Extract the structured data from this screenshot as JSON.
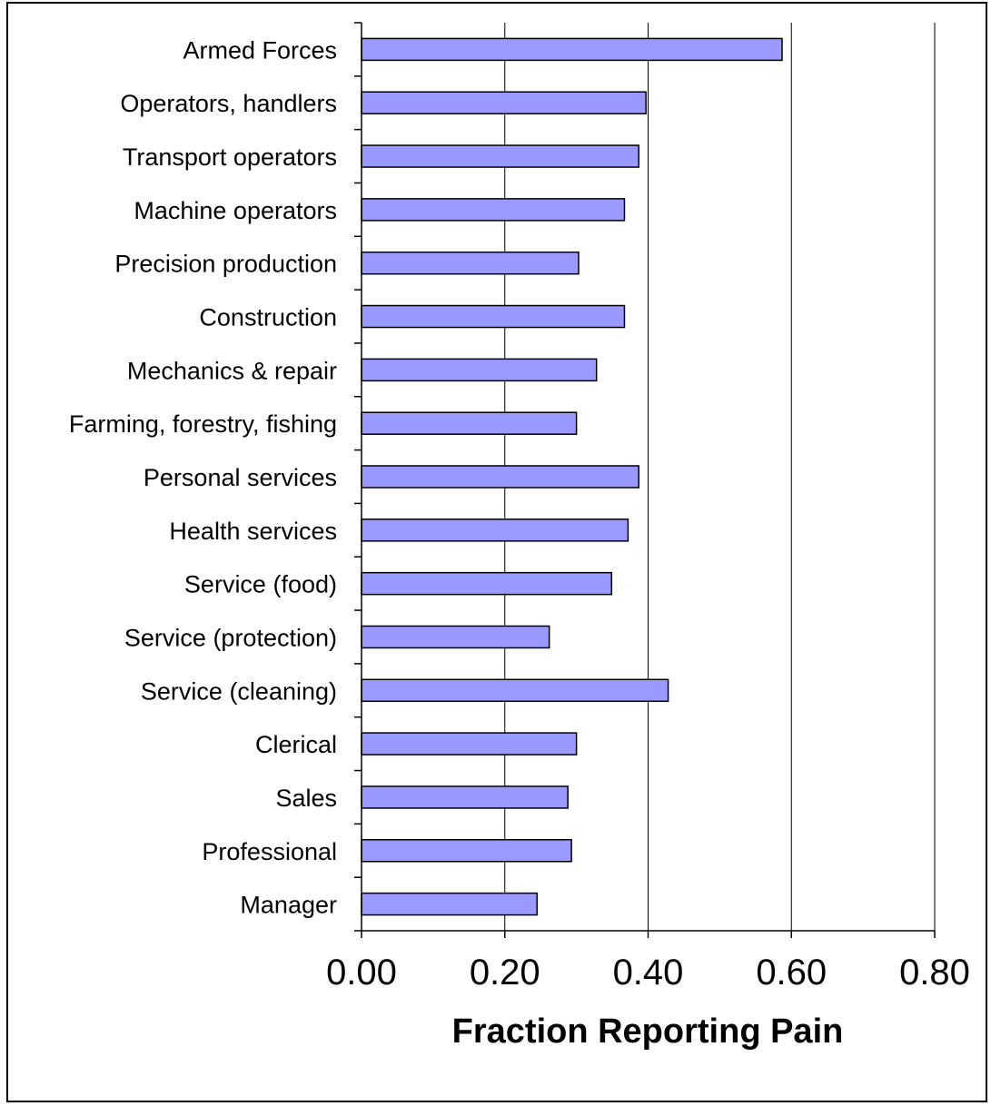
{
  "chart_data": {
    "type": "bar",
    "orientation": "horizontal",
    "categories": [
      "Armed Forces",
      "Operators, handlers",
      "Transport operators",
      "Machine operators",
      "Precision production",
      "Construction",
      "Mechanics & repair",
      "Farming, forestry, fishing",
      "Personal services",
      "Health services",
      "Service (food)",
      "Service (protection)",
      "Service (cleaning)",
      "Clerical",
      "Sales",
      "Professional",
      "Manager"
    ],
    "values": [
      0.587,
      0.397,
      0.387,
      0.367,
      0.303,
      0.367,
      0.328,
      0.3,
      0.387,
      0.372,
      0.349,
      0.262,
      0.428,
      0.3,
      0.288,
      0.293,
      0.245
    ],
    "xlim": [
      0,
      0.8
    ],
    "xticks": [
      0,
      0.2,
      0.4,
      0.6,
      0.8
    ],
    "xtick_labels": [
      "0.00",
      "0.20",
      "0.40",
      "0.60",
      "0.80"
    ],
    "xlabel": "Fraction Reporting Pain",
    "ylabel": "",
    "title": "",
    "grid": "vertical",
    "legend": "none",
    "bar_color": "#9999ff"
  }
}
